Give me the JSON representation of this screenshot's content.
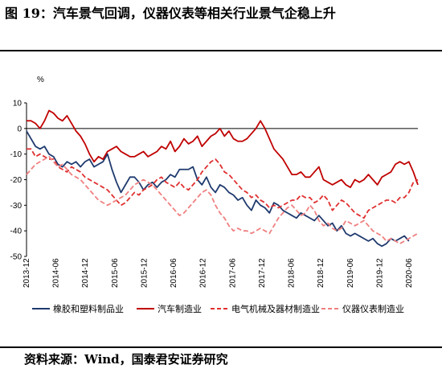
{
  "title": "图 19：汽车景气回调，仪器仪表等相关行业景气企稳上升",
  "source": "资料来源：Wind，国泰君安证券研究",
  "chart_data": {
    "type": "line",
    "ylabel": "%",
    "ylim": [
      -50,
      10
    ],
    "yticks": [
      10,
      0,
      -10,
      -20,
      -30,
      -40,
      -50
    ],
    "x_start": "2013-12",
    "x_labels": [
      "2013-12",
      "2014-06",
      "2014-12",
      "2015-06",
      "2015-12",
      "2016-06",
      "2016-12",
      "2017-06",
      "2017-12",
      "2018-06",
      "2018-12",
      "2019-06",
      "2019-12",
      "2020-06"
    ],
    "legend_position": "bottom",
    "series": [
      {
        "name": "橡胶和塑料制品业",
        "color": "#1f3a6e",
        "dash": "solid",
        "values": [
          -1,
          -4,
          -7,
          -8,
          -7,
          -10,
          -11,
          -14,
          -15,
          -13,
          -14,
          -13,
          -15,
          -13,
          -12,
          -15,
          -14,
          -13,
          -10,
          -16,
          -21,
          -25,
          -22,
          -19,
          -19,
          -21,
          -24,
          -22,
          -21,
          -23,
          -21,
          -20,
          -18,
          -19,
          -16,
          -16,
          -16,
          -15,
          -20,
          -22,
          -19,
          -23,
          -25,
          -22,
          -23,
          -25,
          -26,
          -28,
          -27,
          -30,
          -32,
          -28,
          -30,
          -31,
          -33,
          -29,
          -30,
          -32,
          -33,
          -34,
          -35,
          -33,
          -34,
          -35,
          -36,
          -34,
          -36,
          -38,
          -37,
          -40,
          -38,
          -41,
          -42,
          -41,
          -42,
          -43,
          -44,
          -43,
          -45,
          -46,
          -45,
          -43,
          -44,
          -43,
          -42,
          -44
        ]
      },
      {
        "name": "汽车制造业",
        "color": "#c00000",
        "dash": "solid",
        "values": [
          3,
          3,
          2,
          0,
          3,
          7,
          6,
          4,
          3,
          5,
          2,
          -1,
          -3,
          -6,
          -10,
          -13,
          -11,
          -12,
          -9,
          -8,
          -7,
          -9,
          -10,
          -11,
          -11,
          -10,
          -9,
          -11,
          -10,
          -9,
          -7,
          -8,
          -5,
          -9,
          -7,
          -4,
          -6,
          -5,
          -3,
          -7,
          -5,
          -3,
          -2,
          0,
          -3,
          -1,
          -4,
          -5,
          -5,
          -4,
          -2,
          0,
          3,
          0,
          -4,
          -8,
          -10,
          -12,
          -15,
          -18,
          -18,
          -17,
          -19,
          -19,
          -17,
          -15,
          -20,
          -21,
          -22,
          -21,
          -20,
          -22,
          -23,
          -20,
          -21,
          -20,
          -18,
          -20,
          -22,
          -19,
          -18,
          -17,
          -14,
          -13,
          -14,
          -13,
          -17,
          -22
        ]
      },
      {
        "name": "电气机械及器材制造业",
        "color": "#e03030",
        "dash": "6,3",
        "values": [
          -8,
          -8,
          -11,
          -10,
          -11,
          -12,
          -12,
          -15,
          -16,
          -17,
          -15,
          -16,
          -17,
          -19,
          -20,
          -21,
          -22,
          -23,
          -24,
          -26,
          -28,
          -30,
          -29,
          -27,
          -25,
          -26,
          -24,
          -23,
          -22,
          -20,
          -19,
          -21,
          -22,
          -23,
          -21,
          -23,
          -24,
          -22,
          -20,
          -17,
          -15,
          -13,
          -12,
          -14,
          -17,
          -18,
          -20,
          -22,
          -24,
          -25,
          -27,
          -26,
          -28,
          -29,
          -31,
          -30,
          -31,
          -30,
          -29,
          -28,
          -28,
          -26,
          -27,
          -27,
          -29,
          -28,
          -26,
          -28,
          -32,
          -30,
          -28,
          -29,
          -31,
          -33,
          -34,
          -35,
          -32,
          -31,
          -30,
          -29,
          -28,
          -28,
          -29,
          -27,
          -27,
          -25,
          -21,
          -20
        ]
      },
      {
        "name": "仪器仪表制造业",
        "color": "#f08080",
        "dash": "6,3",
        "values": [
          -18,
          -16,
          -14,
          -13,
          -12,
          -11,
          -13,
          -15,
          -14,
          -16,
          -18,
          -19,
          -20,
          -22,
          -24,
          -26,
          -28,
          -29,
          -30,
          -29,
          -28,
          -27,
          -26,
          -24,
          -22,
          -21,
          -20,
          -21,
          -22,
          -24,
          -26,
          -28,
          -30,
          -32,
          -34,
          -33,
          -31,
          -29,
          -27,
          -25,
          -24,
          -26,
          -30,
          -33,
          -35,
          -38,
          -40,
          -39,
          -40,
          -40,
          -41,
          -40,
          -39,
          -40,
          -41,
          -38,
          -35,
          -33,
          -31,
          -30,
          -32,
          -34,
          -33,
          -30,
          -32,
          -36,
          -38,
          -37,
          -39,
          -40,
          -39,
          -36,
          -37,
          -38,
          -37,
          -36,
          -38,
          -40,
          -41,
          -42,
          -44,
          -43,
          -44,
          -45,
          -44,
          -43,
          -42,
          -41
        ]
      }
    ]
  }
}
